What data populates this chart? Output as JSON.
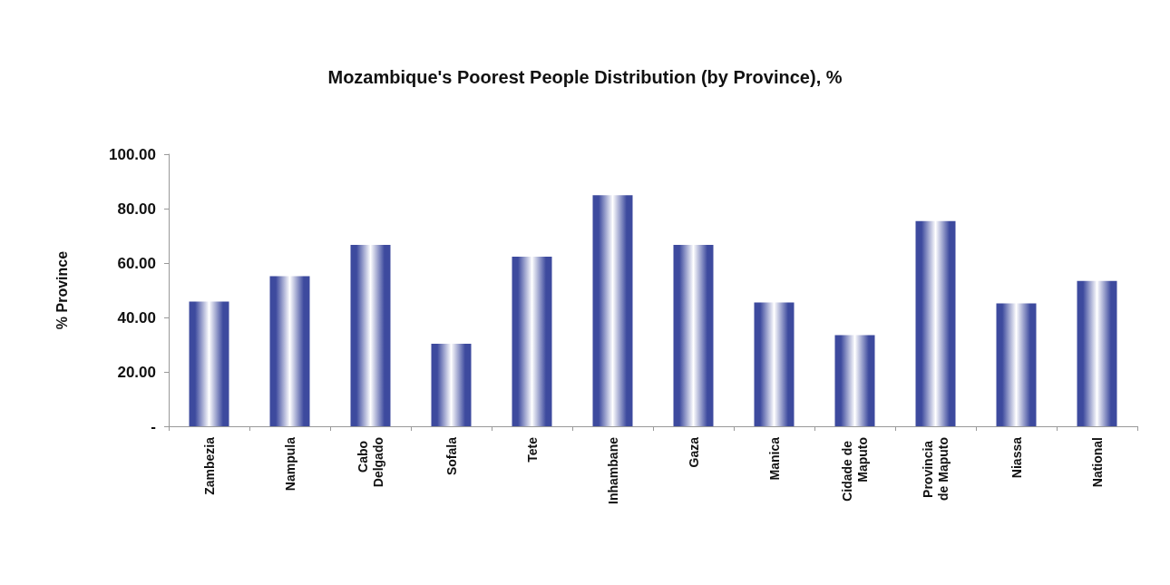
{
  "chart_data": {
    "type": "bar",
    "title": "Mozambique's Poorest People Distribution (by Province), %",
    "ylabel": "% Province",
    "categories": [
      "Zambezia",
      "Nampula",
      "Cabo Delgado",
      "Sofala",
      "Tete",
      "Inhambane",
      "Gaza",
      "Manica",
      "Cidade de Maputo",
      "Provincia de Maputo",
      "Niassa",
      "National"
    ],
    "values": [
      45.8,
      55.2,
      66.7,
      30.3,
      62.3,
      84.9,
      66.7,
      45.5,
      33.5,
      75.4,
      45.2,
      53.4
    ],
    "color": "#3d4a9e",
    "ylim": [
      0,
      100
    ],
    "yticks": [
      {
        "value": 0,
        "label": "-"
      },
      {
        "value": 20,
        "label": "20.00"
      },
      {
        "value": 40,
        "label": "40.00"
      },
      {
        "value": 60,
        "label": "60.00"
      },
      {
        "value": 80,
        "label": "80.00"
      },
      {
        "value": 100,
        "label": "100.00"
      }
    ],
    "grid": false
  }
}
